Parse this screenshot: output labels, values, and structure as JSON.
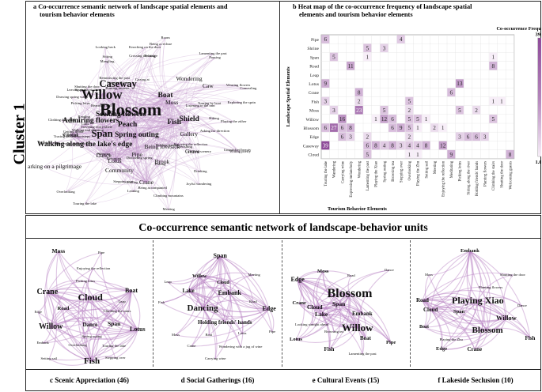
{
  "cluster_label": "Cluster 1",
  "panel_a": {
    "title_line1": "a  Co-occurrence semantic network of landscape spatial elements and",
    "title_line2": "tourism behavior elements",
    "nodes": [
      {
        "label": "Blossom",
        "size": "xl"
      },
      {
        "label": "Willow",
        "size": "l"
      },
      {
        "label": "Caseway",
        "size": "m"
      },
      {
        "label": "Span",
        "size": "m"
      },
      {
        "label": "Fish",
        "size": "s"
      },
      {
        "label": "Peach",
        "size": "s"
      },
      {
        "label": "Seeking flowers",
        "size": "s"
      },
      {
        "label": "Admiring flowers",
        "size": "s"
      },
      {
        "label": "Boat",
        "size": "s"
      },
      {
        "label": "Moss",
        "size": "xs"
      },
      {
        "label": "Shield",
        "size": "s"
      },
      {
        "label": "Spring outing",
        "size": "s"
      },
      {
        "label": "Walking along the lake's edge",
        "size": "s"
      },
      {
        "label": "Lotus",
        "size": "xs"
      },
      {
        "label": "Dance",
        "size": "xs"
      },
      {
        "label": "Pipe",
        "size": "xs"
      },
      {
        "label": "Community",
        "size": "xs"
      },
      {
        "label": "Crane",
        "size": "xs"
      },
      {
        "label": "Cloud",
        "size": "xs"
      },
      {
        "label": "Brook",
        "size": "xs"
      },
      {
        "label": "Gallery",
        "size": "xs"
      },
      {
        "label": "Grave",
        "size": "xs"
      },
      {
        "label": "Wondering",
        "size": "xs"
      },
      {
        "label": "Caw",
        "size": "xs"
      },
      {
        "label": "Being lovesick",
        "size": "xs"
      },
      {
        "label": "Looking back",
        "size": "xxs"
      },
      {
        "label": "Being a recluse",
        "size": "xxs"
      },
      {
        "label": "Overlooking",
        "size": "xxs"
      },
      {
        "label": "Touring the lake",
        "size": "xxs"
      },
      {
        "label": "Climbing mountains",
        "size": "xxs"
      },
      {
        "label": "Meeting",
        "size": "xxs"
      },
      {
        "label": "arking on a pilgrimage",
        "size": "xs"
      },
      {
        "label": "Playing the zither",
        "size": "xxs"
      },
      {
        "label": "Exploring the sprin",
        "size": "xxs"
      },
      {
        "label": "Lamenting the past",
        "size": "xxs"
      },
      {
        "label": "Room",
        "size": "xxs"
      },
      {
        "label": "Knocking on the door",
        "size": "xxs"
      },
      {
        "label": "Clothing the stairs",
        "size": "xxs"
      },
      {
        "label": "Enjoying the reflection",
        "size": "xxs"
      },
      {
        "label": "Wandering",
        "size": "xxs"
      },
      {
        "label": "Unmatched beauty",
        "size": "xxs"
      },
      {
        "label": "Leaving an inscription",
        "size": "xxs"
      },
      {
        "label": "Stepping over",
        "size": "xxs"
      },
      {
        "label": "Burning incense",
        "size": "xxs"
      },
      {
        "label": "Reading",
        "size": "xxs"
      },
      {
        "label": "Viewing flowers",
        "size": "xxs"
      },
      {
        "label": "Drawing spring water",
        "size": "xxs"
      },
      {
        "label": "Holding hands",
        "size": "xxs"
      },
      {
        "label": "Concealing",
        "size": "xxs"
      },
      {
        "label": "Seeking scenery",
        "size": "xxs"
      },
      {
        "label": "Listening to the rain",
        "size": "xxs"
      },
      {
        "label": "Expressing melancholy",
        "size": "xxs"
      },
      {
        "label": "Reminiscing the past",
        "size": "xxs"
      },
      {
        "label": "Joyful wandering",
        "size": "xxs"
      },
      {
        "label": "Walking and chanting",
        "size": "xxs"
      },
      {
        "label": "Picking lotus",
        "size": "xxs"
      },
      {
        "label": "Drinking",
        "size": "xxs"
      },
      {
        "label": "Sleeping",
        "size": "xxs"
      },
      {
        "label": "Writing poetry",
        "size": "xxs"
      },
      {
        "label": "Being accompanied",
        "size": "xxs"
      },
      {
        "label": "Calls",
        "size": "xxs"
      },
      {
        "label": "Shutting the door",
        "size": "xxs"
      },
      {
        "label": "Parting",
        "size": "xxs"
      },
      {
        "label": "Cherishing",
        "size": "xxs"
      },
      {
        "label": "Traveling everywhere",
        "size": "xxs"
      },
      {
        "label": "Asking for direction",
        "size": "xxs"
      },
      {
        "label": "Mangling",
        "size": "xxs"
      },
      {
        "label": "Touring by boat",
        "size": "xxs"
      },
      {
        "label": "Tracing ancient footsteps",
        "size": "xxs"
      },
      {
        "label": "Washing cups",
        "size": "xxs"
      },
      {
        "label": "Getting drunk",
        "size": "xxs"
      },
      {
        "label": "Discussing spring",
        "size": "xxs"
      },
      {
        "label": "Gazing at",
        "size": "xxs"
      },
      {
        "label": "Smiling",
        "size": "xxs"
      },
      {
        "label": "Pausing",
        "size": "xxs"
      },
      {
        "label": "Wearing flowers",
        "size": "xxs"
      },
      {
        "label": "Crossing the bridge",
        "size": "xxs"
      },
      {
        "label": "Hearing a bell",
        "size": "xxs"
      },
      {
        "label": "Returning",
        "size": "xxs"
      },
      {
        "label": "Fishing",
        "size": "xxs"
      },
      {
        "label": "Sitting",
        "size": "xxs"
      },
      {
        "label": "Leaning",
        "size": "xxs"
      },
      {
        "label": "Hiking",
        "size": "xxs"
      },
      {
        "label": "Singing",
        "size": "xxs"
      }
    ]
  },
  "panel_b": {
    "title_line1": "b  Heat map of the co-occurrence frequency of landscape spatial",
    "title_line2": "elements and tourism behavior elements",
    "legend_title": "Co-occurrence Frequency",
    "legend_max_label": "39.00",
    "legend_min_label": "1.000",
    "color_min": "#f7eef8",
    "color_max": "#8e4b99",
    "ylabel": "Landscape Spatial Elements",
    "xlabel": "Tourism Behavior Elements"
  },
  "chart_data": {
    "type": "heatmap",
    "title": "Heat map of the co-occurrence frequency of landscape spatial elements and tourism behavior elements",
    "xlabel": "Tourism Behavior Elements",
    "ylabel": "Landscape Spatial Elements",
    "vmin": 1,
    "vmax": 39,
    "rows": [
      "Pipe",
      "Shrine",
      "Span",
      "Road",
      "Leap",
      "Lotus",
      "Crane",
      "Fish",
      "Moss",
      "Willow",
      "Blossom",
      "Edge",
      "Caseway",
      "Cloud"
    ],
    "columns": [
      "Touring the lake",
      "Wandering",
      "Carrying wine",
      "Expressing melancholy",
      "Wondering",
      "Lamenting the past",
      "Playing the Xiao",
      "Spring outing",
      "Browsing tea",
      "Stepping over",
      "Overlooking",
      "Playing the Zhu",
      "Setting sail",
      "Meeting",
      "Enjoying the reflection",
      "Meditating",
      "Picking lotus",
      "Sitting along the river",
      "Holding friends' hands",
      "Planting flowers",
      "Climbing the stairs",
      "Shutting the door",
      "Welcoming guests"
    ],
    "cells": [
      {
        "row": "Pipe",
        "col": "Touring the lake",
        "v": 6
      },
      {
        "row": "Pipe",
        "col": "Stepping over",
        "v": 4
      },
      {
        "row": "Shrine",
        "col": "Lamenting the past",
        "v": 5
      },
      {
        "row": "Shrine",
        "col": "Spring outing",
        "v": 3
      },
      {
        "row": "Span",
        "col": "Wandering",
        "v": 5
      },
      {
        "row": "Span",
        "col": "Lamenting the past",
        "v": 1
      },
      {
        "row": "Span",
        "col": "Climbing the stairs",
        "v": 1
      },
      {
        "row": "Road",
        "col": "Expressing melancholy",
        "v": 11
      },
      {
        "row": "Road",
        "col": "Climbing the stairs",
        "v": 8
      },
      {
        "row": "Lotus",
        "col": "Touring the lake",
        "v": 9
      },
      {
        "row": "Lotus",
        "col": "Picking lotus",
        "v": 13
      },
      {
        "row": "Crane",
        "col": "Wondering",
        "v": 8
      },
      {
        "row": "Crane",
        "col": "Meditating",
        "v": 6
      },
      {
        "row": "Fish",
        "col": "Touring the lake",
        "v": 3
      },
      {
        "row": "Fish",
        "col": "Wondering",
        "v": 2
      },
      {
        "row": "Fish",
        "col": "Overlooking",
        "v": 5
      },
      {
        "row": "Fish",
        "col": "Climbing the stairs",
        "v": 1
      },
      {
        "row": "Fish",
        "col": "Shutting the door",
        "v": 1
      },
      {
        "row": "Moss",
        "col": "Wandering",
        "v": 3
      },
      {
        "row": "Moss",
        "col": "Wondering",
        "v": 23
      },
      {
        "row": "Moss",
        "col": "Spring outing",
        "v": 5
      },
      {
        "row": "Moss",
        "col": "Overlooking",
        "v": 2
      },
      {
        "row": "Moss",
        "col": "Picking lotus",
        "v": 5
      },
      {
        "row": "Moss",
        "col": "Holding friends' hands",
        "v": 2
      },
      {
        "row": "Willow",
        "col": "Carrying wine",
        "v": 16
      },
      {
        "row": "Willow",
        "col": "Playing the Xiao",
        "v": 1
      },
      {
        "row": "Willow",
        "col": "Spring outing",
        "v": 12
      },
      {
        "row": "Willow",
        "col": "Browsing tea",
        "v": 6
      },
      {
        "row": "Willow",
        "col": "Overlooking",
        "v": 5
      },
      {
        "row": "Willow",
        "col": "Playing the Zhu",
        "v": 5
      },
      {
        "row": "Willow",
        "col": "Setting sail",
        "v": 1
      },
      {
        "row": "Willow",
        "col": "Climbing the stairs",
        "v": 5
      },
      {
        "row": "Blossom",
        "col": "Touring the lake",
        "v": 6
      },
      {
        "row": "Blossom",
        "col": "Wandering",
        "v": 27
      },
      {
        "row": "Blossom",
        "col": "Carrying wine",
        "v": 6
      },
      {
        "row": "Blossom",
        "col": "Expressing melancholy",
        "v": 8
      },
      {
        "row": "Blossom",
        "col": "Browsing tea",
        "v": 6
      },
      {
        "row": "Blossom",
        "col": "Stepping over",
        "v": 9
      },
      {
        "row": "Blossom",
        "col": "Overlooking",
        "v": 5
      },
      {
        "row": "Blossom",
        "col": "Playing the Zhu",
        "v": 1
      },
      {
        "row": "Blossom",
        "col": "Meeting",
        "v": 2
      },
      {
        "row": "Blossom",
        "col": "Enjoying the reflection",
        "v": 1
      },
      {
        "row": "Edge",
        "col": "Carrying wine",
        "v": 6
      },
      {
        "row": "Edge",
        "col": "Expressing melancholy",
        "v": 3
      },
      {
        "row": "Edge",
        "col": "Lamenting the past",
        "v": 2
      },
      {
        "row": "Edge",
        "col": "Overlooking",
        "v": 2
      },
      {
        "row": "Edge",
        "col": "Picking lotus",
        "v": 3
      },
      {
        "row": "Edge",
        "col": "Sitting along the river",
        "v": 6
      },
      {
        "row": "Edge",
        "col": "Holding friends' hands",
        "v": 6
      },
      {
        "row": "Edge",
        "col": "Planting flowers",
        "v": 3
      },
      {
        "row": "Caseway",
        "col": "Touring the lake",
        "v": 39
      },
      {
        "row": "Caseway",
        "col": "Lamenting the past",
        "v": 6
      },
      {
        "row": "Caseway",
        "col": "Playing the Xiao",
        "v": 8
      },
      {
        "row": "Caseway",
        "col": "Spring outing",
        "v": 4
      },
      {
        "row": "Caseway",
        "col": "Browsing tea",
        "v": 8
      },
      {
        "row": "Caseway",
        "col": "Stepping over",
        "v": 3
      },
      {
        "row": "Caseway",
        "col": "Overlooking",
        "v": 4
      },
      {
        "row": "Caseway",
        "col": "Playing the Zhu",
        "v": 4
      },
      {
        "row": "Caseway",
        "col": "Setting sail",
        "v": 8
      },
      {
        "row": "Caseway",
        "col": "Enjoying the reflection",
        "v": 12
      },
      {
        "row": "Cloud",
        "col": "Lamenting the past",
        "v": 5
      },
      {
        "row": "Cloud",
        "col": "Overlooking",
        "v": 1
      },
      {
        "row": "Cloud",
        "col": "Playing the Zhu",
        "v": 1
      },
      {
        "row": "Cloud",
        "col": "Meditating",
        "v": 9
      },
      {
        "row": "Cloud",
        "col": "Welcoming guests",
        "v": 8
      }
    ]
  },
  "section_title": "Co-occurrence semantic network of landscape-behavior units",
  "units": [
    {
      "caption": "c  Scenic Appreciation (46)",
      "nodes": [
        "Moss",
        "Pipe",
        "Enjoying the reflection",
        "Picking lotus",
        "Crane",
        "Cloud",
        "Boat",
        "Leap",
        "Road",
        "Edge",
        "Climbing the stairs",
        "Willow",
        "Dance",
        "Span",
        "Lotus",
        "Spring outing",
        "Embank",
        "Touring the lake",
        "Overlooking",
        "Setting sail",
        "Fish",
        "Stepping over"
      ]
    },
    {
      "caption": "d  Social Gatherings (16)",
      "nodes": [
        "Span",
        "Leap",
        "Willow",
        "Cloud",
        "Meeting",
        "Lake",
        "Embank",
        "Fish",
        "Dancing",
        "Edge",
        "Holding friends' hands",
        "Road",
        "Lotus",
        "Moss",
        "Boat",
        "Crane",
        "Wondering with a jug of wine",
        "Pipe",
        "Carrying wine"
      ]
    },
    {
      "caption": "e  Cultural Events (15)",
      "nodes": [
        "Edge",
        "Moss",
        "Road",
        "Dance",
        "Blossom",
        "Crane",
        "Cloud",
        "Span",
        "Lake",
        "Embank",
        "Looking straight ahead",
        "Willow",
        "Browsing tea",
        "Boat",
        "Lotus",
        "Fish",
        "Pipe",
        "Lamenting the past"
      ]
    },
    {
      "caption": "f  Lakeside Seclusion (10)",
      "nodes": [
        "Embank",
        "Moss",
        "Shutting the door",
        "Planting flowers",
        "Road",
        "Playing Xiao",
        "Dance",
        "Cloud",
        "Span",
        "Willow",
        "Blossom",
        "Boat",
        "Playing the Zhu",
        "Edge",
        "Crane",
        "Fish"
      ]
    }
  ]
}
